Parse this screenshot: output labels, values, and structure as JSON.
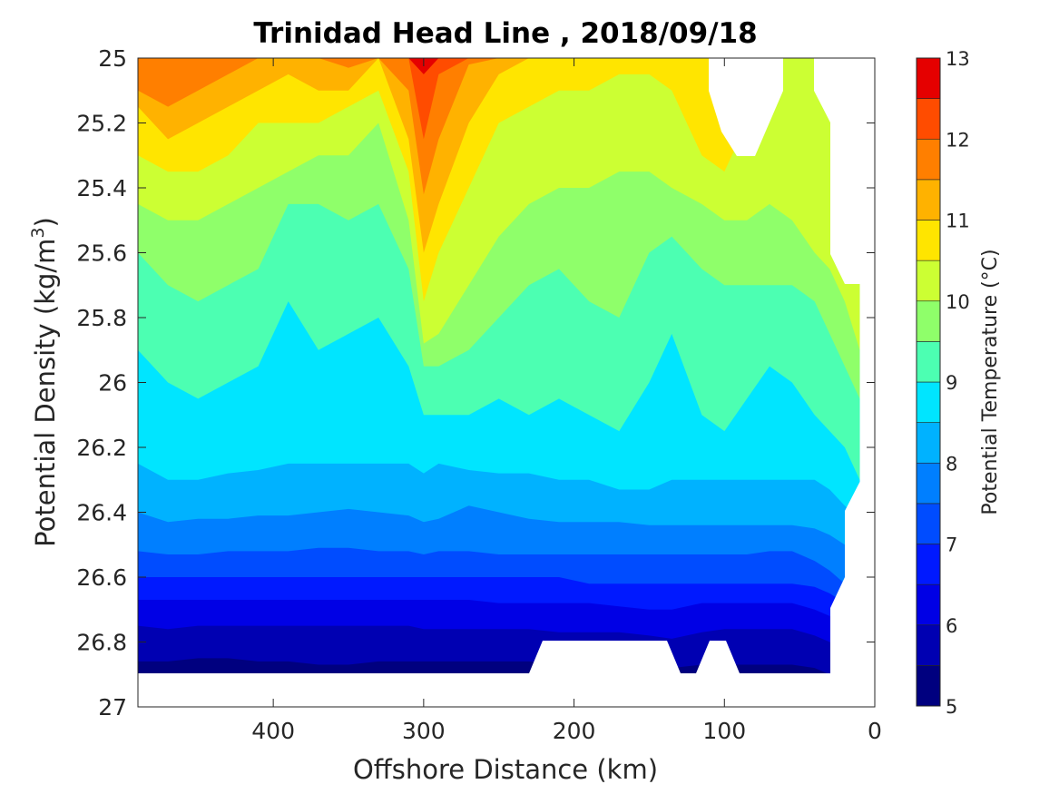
{
  "chart_data": {
    "type": "heatmap",
    "subtype": "filled-contour",
    "title": "Trinidad Head Line , 2018/09/18",
    "xlabel": "Offshore Distance (km)",
    "ylabel_main": "Potential Density (kg/m",
    "ylabel_sup": "3",
    "ylabel_end": ")",
    "colorbar_label": "Potential Temperature (°C)",
    "xlim": [
      490,
      0
    ],
    "x_reversed": true,
    "ylim": [
      25,
      27
    ],
    "y_reversed": true,
    "xticks": [
      400,
      300,
      200,
      100,
      0
    ],
    "xtick_labels": [
      "400",
      "300",
      "200",
      "100",
      "0"
    ],
    "yticks": [
      25,
      25.2,
      25.4,
      25.6,
      25.8,
      26,
      26.2,
      26.4,
      26.6,
      26.8,
      27
    ],
    "ytick_labels": [
      "25",
      "25.2",
      "25.4",
      "25.6",
      "25.8",
      "26",
      "26.2",
      "26.4",
      "26.6",
      "26.8",
      "27"
    ],
    "colorbar_range": [
      5,
      13
    ],
    "colorbar_ticks": [
      5,
      6,
      7,
      8,
      9,
      10,
      11,
      12,
      13
    ],
    "colorbar_tick_labels": [
      "5",
      "6",
      "7",
      "8",
      "9",
      "10",
      "11",
      "12",
      "13"
    ],
    "contour_levels": [
      5,
      5.5,
      6,
      6.5,
      7,
      7.5,
      8,
      8.5,
      9,
      9.5,
      10,
      10.5,
      11,
      11.5,
      12,
      12.5,
      13
    ],
    "colormap": [
      "#00007f",
      "#0000b2",
      "#0000e5",
      "#0019ff",
      "#004cff",
      "#007fff",
      "#00b2ff",
      "#00e5ff",
      "#4cffb2",
      "#8fff6a",
      "#ccff33",
      "#ffe500",
      "#ffb200",
      "#ff7f00",
      "#ff4c00",
      "#e50000",
      "#a50000"
    ],
    "x": [
      490,
      470,
      450,
      430,
      410,
      390,
      370,
      350,
      330,
      310,
      300,
      290,
      270,
      250,
      230,
      210,
      190,
      170,
      150,
      135,
      115,
      100,
      85,
      70,
      55,
      40,
      30,
      20,
      10
    ],
    "isopycnal_depth_of_level": [
      {
        "temperature": 12.5,
        "density": [
          25.0,
          25.0,
          25.0,
          25.0,
          25.0,
          25.0,
          25.0,
          25.0,
          25.0,
          25.0,
          25.05,
          25.0,
          25.0,
          25.0,
          25.0,
          25.0,
          25.0,
          25.0,
          25.0,
          25.0,
          25.0,
          25.0,
          25.0,
          25.0,
          25.0,
          25.0,
          25.0,
          25.0,
          25.0
        ]
      },
      {
        "temperature": 12.0,
        "density": [
          25.0,
          25.0,
          25.0,
          25.0,
          25.0,
          25.0,
          25.0,
          25.0,
          25.0,
          25.0,
          25.25,
          25.05,
          25.0,
          25.0,
          25.0,
          25.0,
          25.0,
          25.0,
          25.0,
          25.0,
          25.0,
          25.0,
          25.0,
          25.0,
          25.0,
          25.0,
          25.0,
          25.0,
          25.0
        ]
      },
      {
        "temperature": 11.5,
        "density": [
          25.1,
          25.15,
          25.1,
          25.05,
          25.0,
          25.0,
          25.0,
          25.03,
          25.0,
          25.1,
          25.42,
          25.25,
          25.02,
          25.0,
          25.0,
          25.0,
          25.0,
          25.0,
          25.0,
          25.0,
          25.0,
          25.0,
          25.0,
          25.0,
          25.0,
          25.0,
          25.0,
          25.0,
          25.0
        ]
      },
      {
        "temperature": 11.0,
        "density": [
          25.15,
          25.25,
          25.2,
          25.15,
          25.1,
          25.05,
          25.1,
          25.1,
          25.0,
          25.25,
          25.6,
          25.45,
          25.2,
          25.05,
          25.0,
          25.0,
          25.0,
          25.0,
          25.0,
          25.0,
          25.0,
          25.0,
          25.0,
          25.0,
          25.0,
          25.0,
          25.0,
          25.0,
          25.0
        ]
      },
      {
        "temperature": 10.5,
        "density": [
          25.3,
          25.35,
          25.35,
          25.3,
          25.2,
          25.2,
          25.2,
          25.15,
          25.1,
          25.35,
          25.75,
          25.6,
          25.4,
          25.2,
          25.15,
          25.1,
          25.1,
          25.05,
          25.05,
          25.1,
          25.3,
          25.35,
          25.2,
          25.0,
          25.0,
          25.0,
          25.0,
          25.0,
          25.0
        ]
      },
      {
        "temperature": 10.0,
        "density": [
          25.45,
          25.5,
          25.5,
          25.45,
          25.4,
          25.35,
          25.3,
          25.3,
          25.2,
          25.5,
          25.88,
          25.85,
          25.7,
          25.55,
          25.45,
          25.4,
          25.4,
          25.35,
          25.35,
          25.4,
          25.45,
          25.5,
          25.5,
          25.45,
          25.5,
          25.6,
          25.65,
          25.75,
          25.9
        ]
      },
      {
        "temperature": 9.5,
        "density": [
          25.6,
          25.7,
          25.75,
          25.7,
          25.65,
          25.45,
          25.45,
          25.5,
          25.45,
          25.65,
          25.95,
          25.95,
          25.9,
          25.8,
          25.7,
          25.65,
          25.75,
          25.8,
          25.6,
          25.55,
          25.65,
          25.7,
          25.7,
          25.7,
          25.7,
          25.75,
          25.85,
          25.95,
          26.05
        ]
      },
      {
        "temperature": 9.0,
        "density": [
          25.9,
          26.0,
          26.05,
          26.0,
          25.95,
          25.75,
          25.9,
          25.85,
          25.8,
          25.95,
          26.1,
          26.1,
          26.1,
          26.05,
          26.1,
          26.05,
          26.1,
          26.15,
          26.0,
          25.85,
          26.1,
          26.15,
          26.05,
          25.95,
          26.0,
          26.1,
          26.15,
          26.2,
          26.3
        ]
      },
      {
        "temperature": 8.5,
        "density": [
          26.25,
          26.3,
          26.3,
          26.28,
          26.27,
          26.25,
          26.25,
          26.25,
          26.25,
          26.25,
          26.28,
          26.25,
          26.27,
          26.28,
          26.28,
          26.3,
          26.3,
          26.33,
          26.33,
          26.3,
          26.3,
          26.3,
          26.3,
          26.3,
          26.3,
          26.3,
          26.33,
          26.38,
          26.42
        ]
      },
      {
        "temperature": 8.0,
        "density": [
          26.4,
          26.43,
          26.42,
          26.42,
          26.41,
          26.41,
          26.4,
          26.39,
          26.4,
          26.41,
          26.43,
          26.42,
          26.38,
          26.4,
          26.42,
          26.43,
          26.43,
          26.43,
          26.44,
          26.44,
          26.44,
          26.44,
          26.44,
          26.44,
          26.44,
          26.45,
          26.47,
          26.5,
          26.55
        ]
      },
      {
        "temperature": 7.5,
        "density": [
          26.52,
          26.53,
          26.53,
          26.52,
          26.52,
          26.52,
          26.51,
          26.51,
          26.52,
          26.52,
          26.53,
          26.52,
          26.52,
          26.53,
          26.53,
          26.53,
          26.53,
          26.53,
          26.53,
          26.53,
          26.53,
          26.53,
          26.53,
          26.52,
          26.52,
          26.55,
          26.58,
          26.62,
          26.66
        ]
      },
      {
        "temperature": 7.0,
        "density": [
          26.6,
          26.6,
          26.6,
          26.6,
          26.6,
          26.6,
          26.6,
          26.6,
          26.6,
          26.6,
          26.6,
          26.6,
          26.6,
          26.6,
          26.6,
          26.6,
          26.62,
          26.62,
          26.62,
          26.62,
          26.62,
          26.62,
          26.62,
          26.62,
          26.62,
          26.63,
          26.65,
          26.68,
          26.72
        ]
      },
      {
        "temperature": 6.5,
        "density": [
          26.67,
          26.67,
          26.67,
          26.67,
          26.67,
          26.67,
          26.67,
          26.67,
          26.67,
          26.67,
          26.67,
          26.67,
          26.67,
          26.68,
          26.68,
          26.68,
          26.68,
          26.69,
          26.7,
          26.7,
          26.68,
          26.68,
          26.68,
          26.68,
          26.68,
          26.7,
          26.72,
          26.75,
          26.78
        ]
      },
      {
        "temperature": 6.0,
        "density": [
          26.75,
          26.76,
          26.75,
          26.75,
          26.75,
          26.75,
          26.75,
          26.75,
          26.75,
          26.75,
          26.76,
          26.76,
          26.76,
          26.76,
          26.76,
          26.77,
          26.77,
          26.77,
          26.78,
          26.79,
          26.77,
          26.76,
          26.76,
          26.76,
          26.76,
          26.78,
          26.8,
          26.83,
          26.86
        ]
      },
      {
        "temperature": 5.5,
        "density": [
          26.86,
          26.86,
          26.85,
          26.85,
          26.86,
          26.86,
          26.87,
          26.87,
          26.86,
          26.86,
          26.86,
          26.86,
          26.86,
          26.86,
          26.86,
          26.87,
          26.87,
          26.87,
          26.87,
          26.88,
          26.87,
          26.87,
          26.87,
          26.87,
          26.87,
          26.88,
          26.9,
          26.92,
          26.94
        ]
      }
    ],
    "masked_regions_note": "",
    "colorbar_location": "right",
    "grid": false
  }
}
